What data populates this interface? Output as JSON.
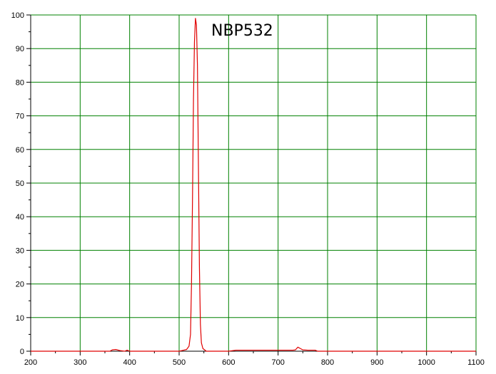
{
  "chart_data": {
    "type": "line",
    "title": "NBP532",
    "xlabel": "",
    "ylabel": "",
    "xlim": [
      200,
      1100
    ],
    "ylim": [
      0,
      100
    ],
    "grid": true,
    "x_ticks": [
      200,
      300,
      400,
      500,
      600,
      700,
      800,
      900,
      1000,
      1100
    ],
    "y_ticks": [
      0,
      10,
      20,
      30,
      40,
      50,
      60,
      70,
      80,
      90,
      100
    ],
    "colors": {
      "grid": "#008000",
      "series": "#e00000",
      "axis": "#000000"
    },
    "series": [
      {
        "name": "",
        "x": [
          200,
          360,
          365,
          372,
          380,
          390,
          395,
          400,
          500,
          515,
          520,
          523,
          525,
          527,
          529,
          531,
          533,
          535,
          537,
          539,
          541,
          543,
          545,
          548,
          555,
          600,
          615,
          620,
          700,
          730,
          735,
          740,
          745,
          750,
          760,
          775,
          780,
          800,
          1100
        ],
        "y": [
          0,
          0,
          0.4,
          0.5,
          0.2,
          0,
          0.3,
          0,
          0,
          0.5,
          1.5,
          5,
          20,
          45,
          75,
          92,
          99,
          97,
          85,
          55,
          25,
          8,
          2.5,
          0.8,
          0,
          0,
          0.3,
          0.3,
          0.3,
          0.3,
          0.4,
          1.2,
          0.8,
          0.4,
          0.3,
          0.3,
          0,
          0,
          0
        ]
      }
    ]
  }
}
